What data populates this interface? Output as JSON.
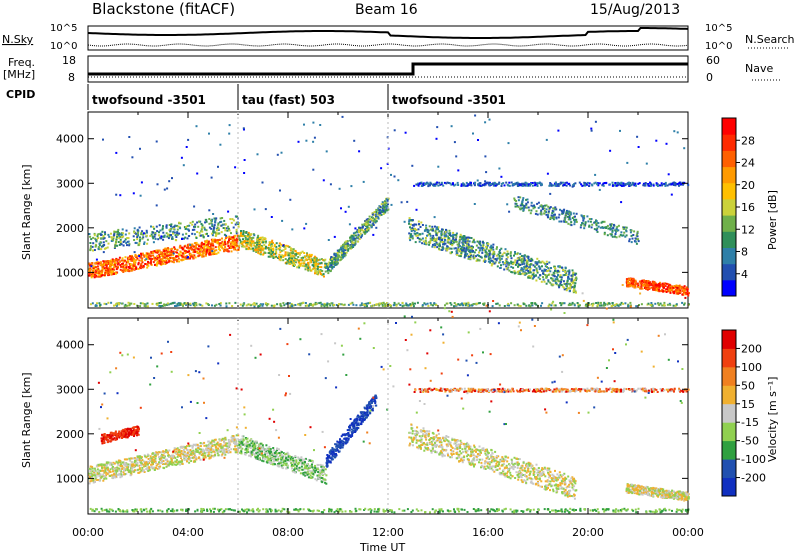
{
  "header": {
    "station": "Blackstone (fitACF)",
    "beam": "Beam 16",
    "date": "15/Aug/2013"
  },
  "noise_panel": {
    "left_label": "N.Sky",
    "right_label": "N.Search",
    "left_ticks": [
      "10^5",
      "10^0"
    ],
    "right_ticks": [
      "10^5",
      "10^0"
    ]
  },
  "freq_panel": {
    "left_label_1": "Freq.",
    "left_label_2": "[MHz]",
    "right_label": "Nave",
    "left_ticks": [
      "18",
      "8"
    ],
    "right_ticks": [
      "60",
      "0"
    ]
  },
  "cpid": {
    "label": "CPID",
    "segments": [
      {
        "name": "twofsound -3501",
        "start_hour": 0,
        "end_hour": 6
      },
      {
        "name": "tau (fast) 503",
        "start_hour": 6,
        "end_hour": 12
      },
      {
        "name": "twofsound -3501",
        "start_hour": 12,
        "end_hour": 24
      }
    ]
  },
  "power_colorbar": {
    "label": "Power [dB]",
    "ticks": [
      "28",
      "24",
      "20",
      "16",
      "12",
      "8",
      "4"
    ],
    "colors": [
      "#0000ff",
      "#224fb0",
      "#2e7fa8",
      "#2f8f5a",
      "#6fb04a",
      "#cbd23a",
      "#ffc000",
      "#ff9a00",
      "#ff6000",
      "#ff2a00",
      "#ff0000"
    ]
  },
  "velocity_colorbar": {
    "label": "Velocity [m s⁻¹]",
    "ticks": [
      "200",
      "100",
      "50",
      "15",
      "-15",
      "-50",
      "-100",
      "-200"
    ],
    "colors": [
      "#1030c0",
      "#2050b0",
      "#30a040",
      "#90d050",
      "#c8c8c8",
      "#f0b030",
      "#f08020",
      "#f04010",
      "#e00000"
    ]
  },
  "chart_data": [
    {
      "type": "heatmap",
      "name": "power",
      "ylabel": "Slant Range [km]",
      "yticks": [
        1000,
        2000,
        3000,
        4000
      ],
      "ylim": [
        200,
        4600
      ],
      "xlim": [
        0,
        24
      ],
      "xticks": [
        "00:00",
        "04:00",
        "08:00",
        "12:00",
        "16:00",
        "20:00",
        "00:00"
      ],
      "xlabel": "Time UT",
      "features": [
        {
          "t0": 0,
          "t1": 6,
          "r0": 900,
          "r1": 1900,
          "value": "high"
        },
        {
          "t0": 6,
          "t1": 9.5,
          "r0": 1000,
          "r1": 2100,
          "value": "medium"
        },
        {
          "t0": 9.5,
          "t1": 12,
          "r0": 1000,
          "r1": 2800,
          "value": "low"
        },
        {
          "t0": 12.8,
          "t1": 19.5,
          "r0": 700,
          "r1": 3000,
          "value": "low"
        },
        {
          "t0": 21.5,
          "t1": 24,
          "r0": 500,
          "r1": 900,
          "value": "high"
        }
      ]
    },
    {
      "type": "heatmap",
      "name": "velocity",
      "ylabel": "Slant Range [km]",
      "yticks": [
        1000,
        2000,
        3000,
        4000
      ],
      "ylim": [
        200,
        4600
      ],
      "xlim": [
        0,
        24
      ],
      "xticks": [
        "00:00",
        "04:00",
        "08:00",
        "12:00",
        "16:00",
        "20:00",
        "00:00"
      ],
      "xlabel": "Time UT"
    }
  ]
}
